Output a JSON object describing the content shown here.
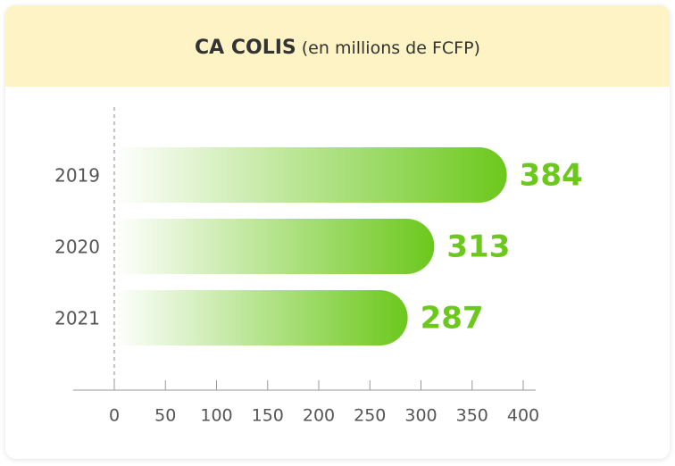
{
  "chart_data": {
    "type": "barh",
    "title": "CA COLIS",
    "subtitle": "(en millions de FCFP)",
    "categories": [
      "2019",
      "2020",
      "2021"
    ],
    "values": [
      384,
      313,
      287
    ],
    "color": "#6cc81c",
    "xlim": [
      0,
      400
    ],
    "xticks": [
      0,
      50,
      100,
      150,
      200,
      250,
      300,
      350,
      400
    ]
  }
}
